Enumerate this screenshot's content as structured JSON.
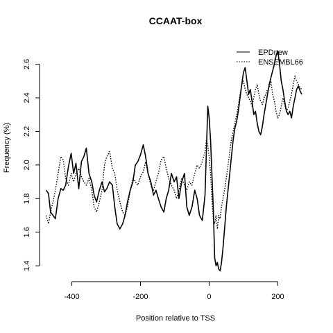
{
  "chart_data": {
    "type": "line",
    "title": "CCAAT-box",
    "xlabel": "Position relative to TSS",
    "ylabel": "Frequency (%)",
    "xlim": [
      -480,
      280
    ],
    "ylim": [
      1.38,
      2.66
    ],
    "xticks": [
      -400,
      -200,
      0,
      200
    ],
    "xtick_labels": [
      "-400",
      "-200",
      "0",
      "200"
    ],
    "yticks": [
      1.4,
      1.6,
      1.8,
      2.0,
      2.2,
      2.4,
      2.6
    ],
    "ytick_labels": [
      "1.4",
      "1.6",
      "1.8",
      "2.0",
      "2.2",
      "2.4",
      "2.6"
    ],
    "grid": false,
    "legend_position": "top-right",
    "series": [
      {
        "name": "EPDnew",
        "style": "solid",
        "color": "#000000",
        "x": [
          -475,
          -468,
          -462,
          -455,
          -448,
          -440,
          -432,
          -425,
          -418,
          -410,
          -402,
          -395,
          -388,
          -380,
          -372,
          -365,
          -358,
          -350,
          -342,
          -335,
          -328,
          -320,
          -312,
          -305,
          -298,
          -290,
          -282,
          -275,
          -268,
          -260,
          -252,
          -245,
          -238,
          -230,
          -222,
          -215,
          -208,
          -200,
          -192,
          -185,
          -178,
          -170,
          -162,
          -155,
          -148,
          -140,
          -132,
          -125,
          -118,
          -110,
          -102,
          -95,
          -88,
          -80,
          -72,
          -65,
          -58,
          -50,
          -42,
          -35,
          -28,
          -20,
          -12,
          -8,
          -4,
          0,
          4,
          8,
          12,
          16,
          20,
          24,
          28,
          32,
          36,
          40,
          45,
          50,
          55,
          60,
          65,
          70,
          75,
          80,
          85,
          90,
          95,
          100,
          105,
          110,
          115,
          120,
          125,
          130,
          135,
          140,
          145,
          150,
          155,
          160,
          165,
          170,
          175,
          180,
          185,
          190,
          195,
          200,
          205,
          210,
          215,
          220,
          225,
          230,
          235,
          240,
          245,
          250,
          255,
          260,
          265,
          270
        ],
        "y": [
          1.85,
          1.83,
          1.72,
          1.7,
          1.68,
          1.8,
          1.86,
          1.85,
          1.88,
          1.99,
          2.07,
          1.95,
          2.01,
          1.86,
          2.02,
          2.05,
          2.1,
          1.95,
          1.9,
          1.82,
          1.78,
          1.85,
          1.9,
          1.84,
          1.86,
          1.9,
          1.88,
          1.75,
          1.65,
          1.62,
          1.65,
          1.7,
          1.78,
          1.85,
          1.9,
          2.0,
          2.02,
          2.06,
          2.12,
          2.05,
          1.95,
          1.9,
          1.82,
          1.85,
          1.8,
          1.75,
          1.72,
          1.8,
          1.85,
          1.95,
          1.9,
          1.93,
          1.8,
          1.9,
          1.95,
          1.75,
          1.7,
          1.75,
          1.85,
          1.8,
          1.7,
          1.67,
          1.82,
          2.08,
          2.35,
          2.28,
          2.15,
          1.95,
          1.75,
          1.45,
          1.4,
          1.42,
          1.38,
          1.37,
          1.42,
          1.5,
          1.62,
          1.75,
          1.85,
          1.95,
          2.05,
          2.15,
          2.22,
          2.26,
          2.32,
          2.4,
          2.48,
          2.55,
          2.58,
          2.5,
          2.42,
          2.45,
          2.38,
          2.3,
          2.32,
          2.25,
          2.2,
          2.18,
          2.23,
          2.3,
          2.36,
          2.42,
          2.48,
          2.52,
          2.56,
          2.6,
          2.65,
          2.68,
          2.6,
          2.5,
          2.45,
          2.38,
          2.32,
          2.3,
          2.32,
          2.28,
          2.35,
          2.4,
          2.45,
          2.47,
          2.44,
          2.42
        ]
      },
      {
        "name": "ENSEMBL66",
        "style": "dotted",
        "color": "#000000",
        "x": [
          -475,
          -468,
          -462,
          -455,
          -448,
          -440,
          -432,
          -425,
          -418,
          -410,
          -402,
          -395,
          -388,
          -380,
          -372,
          -365,
          -358,
          -350,
          -342,
          -335,
          -328,
          -320,
          -312,
          -305,
          -298,
          -290,
          -282,
          -275,
          -268,
          -260,
          -252,
          -245,
          -238,
          -230,
          -222,
          -215,
          -208,
          -200,
          -192,
          -185,
          -178,
          -170,
          -162,
          -155,
          -148,
          -140,
          -132,
          -125,
          -118,
          -110,
          -102,
          -95,
          -88,
          -80,
          -72,
          -65,
          -58,
          -50,
          -42,
          -35,
          -28,
          -20,
          -12,
          -8,
          -4,
          0,
          4,
          8,
          12,
          16,
          20,
          24,
          28,
          32,
          36,
          40,
          45,
          50,
          55,
          60,
          65,
          70,
          75,
          80,
          85,
          90,
          95,
          100,
          105,
          110,
          115,
          120,
          125,
          130,
          135,
          140,
          145,
          150,
          155,
          160,
          165,
          170,
          175,
          180,
          185,
          190,
          195,
          200,
          205,
          210,
          215,
          220,
          225,
          230,
          235,
          240,
          245,
          250,
          255,
          260,
          265,
          270
        ],
        "y": [
          1.7,
          1.65,
          1.72,
          1.78,
          1.85,
          1.95,
          2.05,
          2.03,
          1.92,
          1.88,
          1.95,
          1.9,
          1.95,
          1.98,
          1.93,
          1.9,
          1.88,
          1.92,
          1.85,
          1.75,
          1.72,
          1.78,
          1.85,
          2.0,
          2.05,
          2.08,
          1.98,
          1.95,
          1.85,
          1.78,
          1.72,
          1.7,
          1.75,
          1.85,
          1.92,
          1.9,
          1.88,
          1.93,
          1.96,
          2.02,
          1.95,
          1.88,
          1.85,
          1.9,
          1.95,
          2.03,
          2.05,
          1.98,
          1.92,
          1.88,
          1.85,
          1.8,
          1.85,
          1.92,
          1.88,
          1.85,
          1.9,
          1.88,
          1.95,
          2.0,
          1.98,
          2.02,
          2.08,
          2.15,
          2.12,
          2.05,
          1.95,
          1.8,
          1.68,
          1.65,
          1.7,
          1.62,
          1.7,
          1.68,
          1.75,
          1.8,
          1.85,
          1.92,
          2.0,
          2.08,
          2.15,
          2.2,
          2.25,
          2.3,
          2.35,
          2.42,
          2.48,
          2.5,
          2.45,
          2.42,
          2.4,
          2.38,
          2.35,
          2.4,
          2.45,
          2.48,
          2.42,
          2.38,
          2.36,
          2.4,
          2.42,
          2.45,
          2.46,
          2.5,
          2.42,
          2.38,
          2.32,
          2.28,
          2.3,
          2.35,
          2.4,
          2.36,
          2.32,
          2.34,
          2.38,
          2.42,
          2.48,
          2.53,
          2.5,
          2.48,
          2.46,
          2.45
        ]
      }
    ]
  }
}
